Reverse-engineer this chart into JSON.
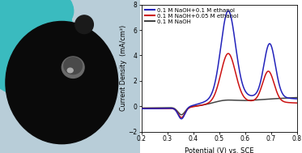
{
  "xlabel": "Potential (V) vs. SCE",
  "ylabel": "Current Density  (mA/cm²)",
  "xlim": [
    0.2,
    0.8
  ],
  "ylim": [
    -2,
    8
  ],
  "yticks": [
    -2,
    0,
    2,
    4,
    6,
    8
  ],
  "xticks": [
    0.2,
    0.3,
    0.4,
    0.5,
    0.6,
    0.7,
    0.8
  ],
  "legend_labels": [
    "0.1 M NaOH+0.1 M ethanol",
    "0.1 M NaOH+0.05 M ethanol",
    "0.1 M NaOH"
  ],
  "colors": [
    "#2222bb",
    "#cc1111",
    "#444444"
  ],
  "photo_bg": "#b8cdd8",
  "photo_cyan": "#3abbbf",
  "photo_disc": "#0a0a0a",
  "photo_hole_bg": "#888888"
}
